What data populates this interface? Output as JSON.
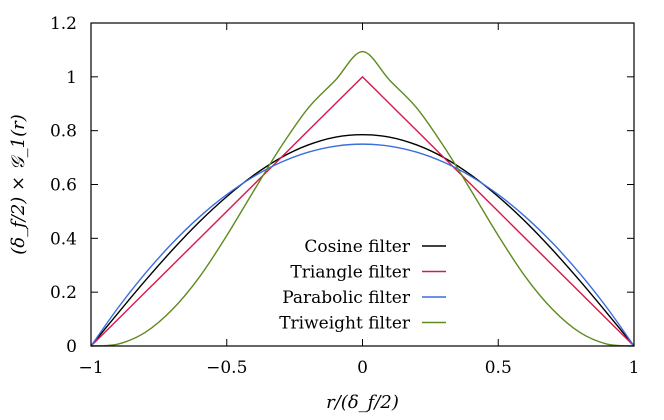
{
  "chart_data": {
    "type": "line",
    "xlabel": "r/(δ_f/2)",
    "ylabel": "(δ_f/2) × 𝒢_1(r)",
    "xlim": [
      -1,
      1
    ],
    "ylim": [
      0,
      1.2
    ],
    "xticks": [
      "−1",
      "−0.5",
      "0",
      "0.5",
      "1"
    ],
    "yticks": [
      "0",
      "0.2",
      "0.4",
      "0.6",
      "0.8",
      "1",
      "1.2"
    ],
    "grid": false,
    "legend_position": "bottom-center",
    "x_samples": [
      -1,
      -0.9,
      -0.8,
      -0.7,
      -0.6,
      -0.5,
      -0.4,
      -0.3,
      -0.2,
      -0.1,
      0,
      0.1,
      0.2,
      0.3,
      0.4,
      0.5,
      0.6,
      0.7,
      0.8,
      0.9,
      1
    ],
    "series": [
      {
        "name": "Cosine filter",
        "color": "#000000",
        "values": [
          0,
          0.123,
          0.243,
          0.357,
          0.462,
          0.555,
          0.635,
          0.7,
          0.747,
          0.776,
          0.785,
          0.776,
          0.747,
          0.7,
          0.635,
          0.555,
          0.462,
          0.357,
          0.243,
          0.123,
          0
        ]
      },
      {
        "name": "Triangle filter",
        "color": "#d6184a",
        "values": [
          0,
          0.1,
          0.2,
          0.3,
          0.4,
          0.5,
          0.6,
          0.7,
          0.8,
          0.9,
          1.0,
          0.9,
          0.8,
          0.7,
          0.6,
          0.5,
          0.4,
          0.3,
          0.2,
          0.1,
          0
        ]
      },
      {
        "name": "Parabolic filter",
        "color": "#3a6ee0",
        "values": [
          0,
          0.1425,
          0.27,
          0.3825,
          0.48,
          0.5625,
          0.63,
          0.6825,
          0.72,
          0.7425,
          0.75,
          0.7425,
          0.72,
          0.6825,
          0.63,
          0.5625,
          0.48,
          0.3825,
          0.27,
          0.1425,
          0
        ]
      },
      {
        "name": "Triweight filter",
        "color": "#5f8a1e",
        "values": [
          0,
          0.0074,
          0.0508,
          0.1359,
          0.2571,
          0.4102,
          0.5774,
          0.7406,
          0.8839,
          0.9872,
          1.0938,
          0.9872,
          0.8839,
          0.7406,
          0.5774,
          0.4102,
          0.2571,
          0.1359,
          0.0508,
          0.0074,
          0
        ]
      }
    ]
  }
}
